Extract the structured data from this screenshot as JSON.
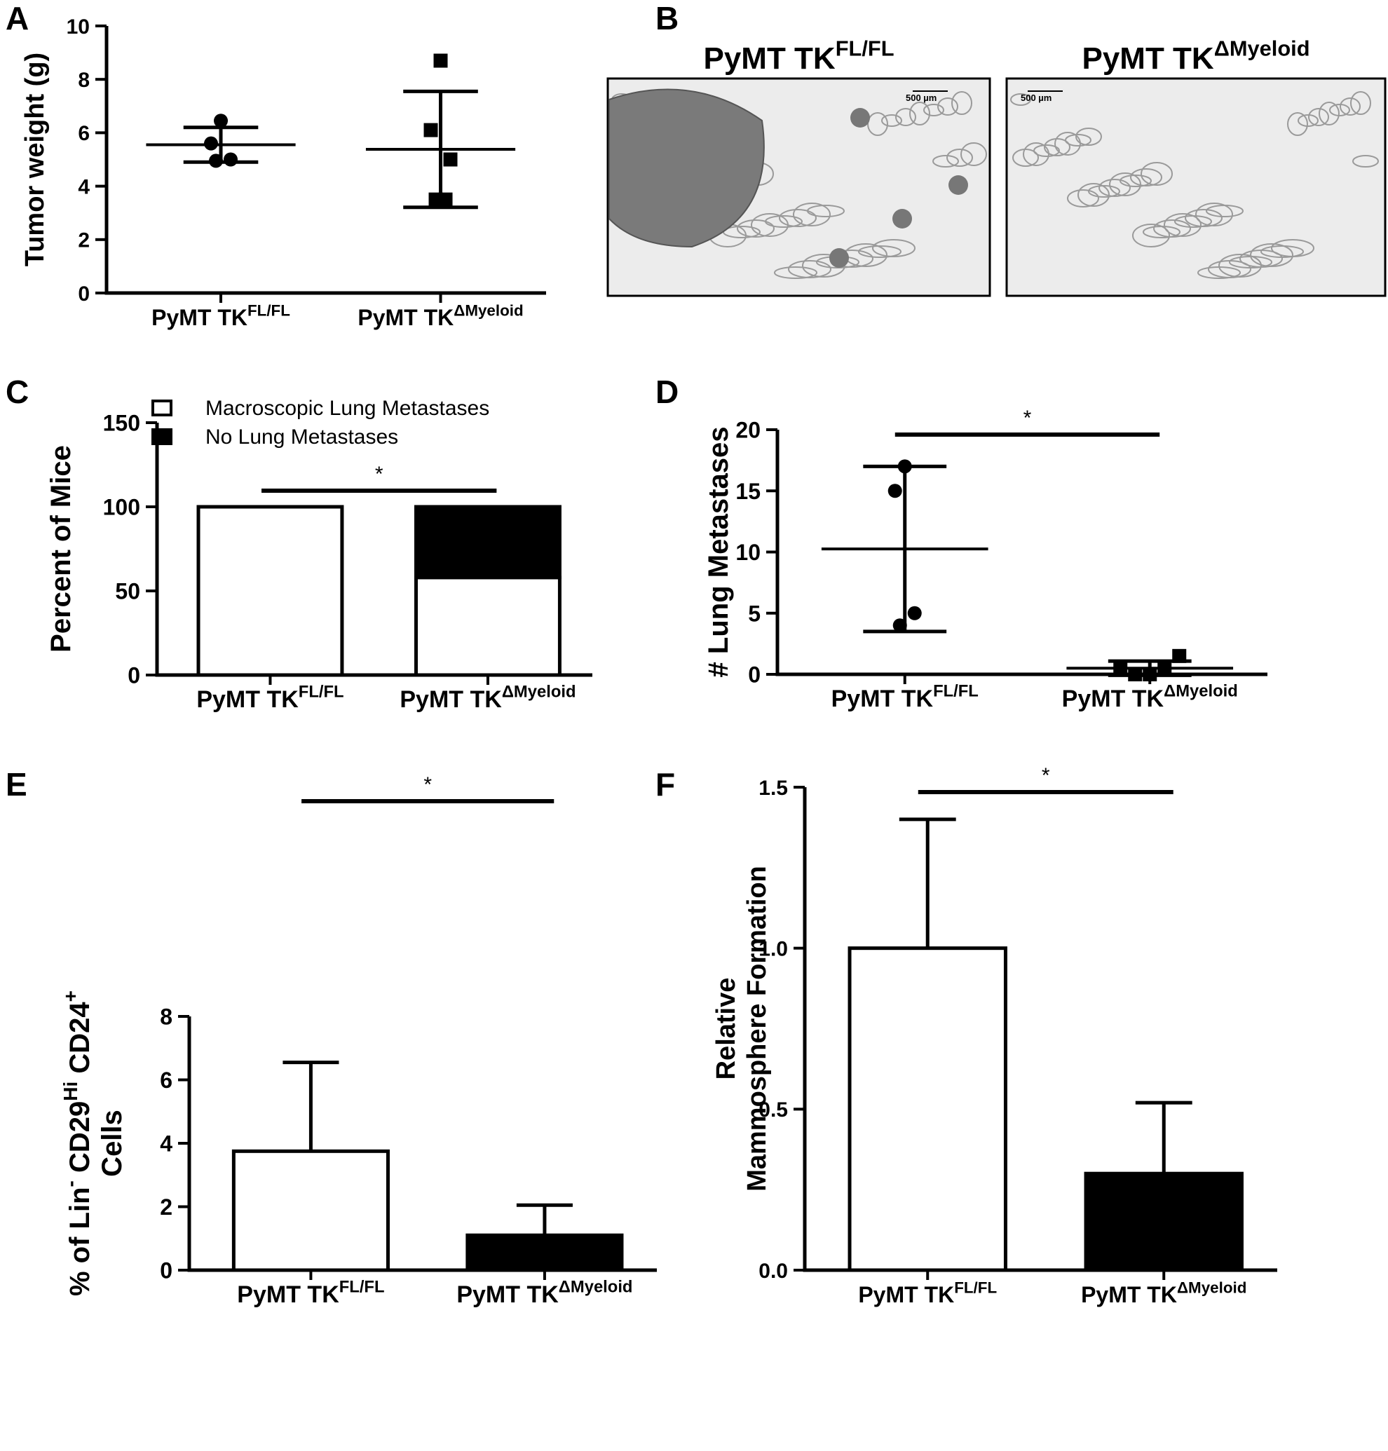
{
  "chart_data": [
    {
      "type": "dot",
      "panel": "A",
      "y_label": [
        [
          {
            "text": "Tumor weight (g)"
          }
        ]
      ],
      "ylim": [
        0,
        10
      ],
      "yticks": [
        0,
        2,
        4,
        6,
        8,
        10
      ],
      "categories": [
        [
          {
            "text": "PyMT TK"
          },
          {
            "text": "FL/FL",
            "sup": true
          }
        ],
        [
          {
            "text": "PyMT TK"
          },
          {
            "text": "ΔMyeloid",
            "sup": true
          }
        ]
      ],
      "groups": [
        {
          "marker": "circle",
          "values": [
            6.45,
            5.6,
            5.0,
            4.95
          ],
          "mean": 5.55,
          "sd": 0.65
        },
        {
          "marker": "square",
          "values": [
            8.7,
            6.1,
            5.0,
            3.5,
            3.5
          ],
          "mean": 5.38,
          "sd": 2.17
        }
      ]
    },
    {
      "type": "image",
      "panel": "B",
      "images": [
        {
          "title": [
            {
              "text": "PyMT TK"
            },
            {
              "text": "FL/FL",
              "sup": true
            }
          ],
          "scale_label": "500 µm",
          "tumor": true
        },
        {
          "title": [
            {
              "text": "PyMT TK"
            },
            {
              "text": "ΔMyeloid",
              "sup": true
            }
          ],
          "scale_label": "500 µm",
          "tumor": false
        }
      ]
    },
    {
      "type": "stacked_bar",
      "panel": "C",
      "y_label": [
        [
          {
            "text": "Percent of Mice"
          }
        ]
      ],
      "ylim": [
        0,
        150
      ],
      "yticks": [
        0,
        50,
        100,
        150
      ],
      "categories": [
        [
          {
            "text": "PyMT TK"
          },
          {
            "text": "FL/FL",
            "sup": true
          }
        ],
        [
          {
            "text": "PyMT TK"
          },
          {
            "text": "ΔMyeloid",
            "sup": true
          }
        ]
      ],
      "series": [
        {
          "name": "Macroscopic Lung Metastases",
          "color": "#ffffff",
          "values": [
            100,
            58
          ]
        },
        {
          "name": "No Lung Metastases",
          "color": "#000000",
          "values": [
            0,
            42
          ]
        }
      ],
      "significance": "*"
    },
    {
      "type": "dot",
      "panel": "D",
      "y_label": [
        [
          {
            "text": "# Lung Metastases"
          }
        ]
      ],
      "ylim": [
        0,
        20
      ],
      "yticks": [
        0,
        5,
        10,
        15,
        20
      ],
      "categories": [
        [
          {
            "text": "PyMT TK"
          },
          {
            "text": "FL/FL",
            "sup": true
          }
        ],
        [
          {
            "text": "PyMT TK"
          },
          {
            "text": "ΔMyeloid",
            "sup": true
          }
        ]
      ],
      "groups": [
        {
          "marker": "circle",
          "values": [
            17,
            15,
            5,
            4
          ],
          "mean": 10.25,
          "sd": 6.75
        },
        {
          "marker": "square",
          "values": [
            0,
            0.5,
            1.5,
            0,
            0.5
          ],
          "mean": 0.5,
          "sd": 0.58
        }
      ],
      "significance": "*"
    },
    {
      "type": "bar",
      "panel": "E",
      "y_label": [
        [
          {
            "text": "% of Lin"
          },
          {
            "text": "-",
            "sup": true
          },
          {
            "text": " CD29"
          },
          {
            "text": "Hi",
            "sup": true
          },
          {
            "text": " CD24"
          },
          {
            "text": "+",
            "sup": true
          }
        ],
        [
          {
            "text": "Cells"
          }
        ]
      ],
      "ylim": [
        0,
        8
      ],
      "yticks": [
        0,
        2,
        4,
        6,
        8
      ],
      "categories": [
        [
          {
            "text": "PyMT TK"
          },
          {
            "text": "FL/FL",
            "sup": true
          }
        ],
        [
          {
            "text": "PyMT TK"
          },
          {
            "text": "ΔMyeloid",
            "sup": true
          }
        ]
      ],
      "values": [
        3.75,
        1.1
      ],
      "errors": [
        2.8,
        0.95
      ],
      "colors": [
        "#ffffff",
        "#000000"
      ],
      "significance": "*"
    },
    {
      "type": "bar",
      "panel": "F",
      "y_label": [
        [
          {
            "text": "Relative"
          }
        ],
        [
          {
            "text": "Mammosphere Formation"
          }
        ]
      ],
      "ylim": [
        0,
        1.5
      ],
      "yticks": [
        {
          "value": 0,
          "label": "0.0"
        },
        0.5,
        {
          "value": 1,
          "label": "1.0"
        },
        1.5
      ],
      "categories": [
        [
          {
            "text": "PyMT TK"
          },
          {
            "text": "FL/FL",
            "sup": true
          }
        ],
        [
          {
            "text": "PyMT TK"
          },
          {
            "text": "ΔMyeloid",
            "sup": true
          }
        ]
      ],
      "values": [
        1.0,
        0.3
      ],
      "errors": [
        0.4,
        0.22
      ],
      "colors": [
        "#ffffff",
        "#000000"
      ],
      "significance": "*"
    }
  ]
}
